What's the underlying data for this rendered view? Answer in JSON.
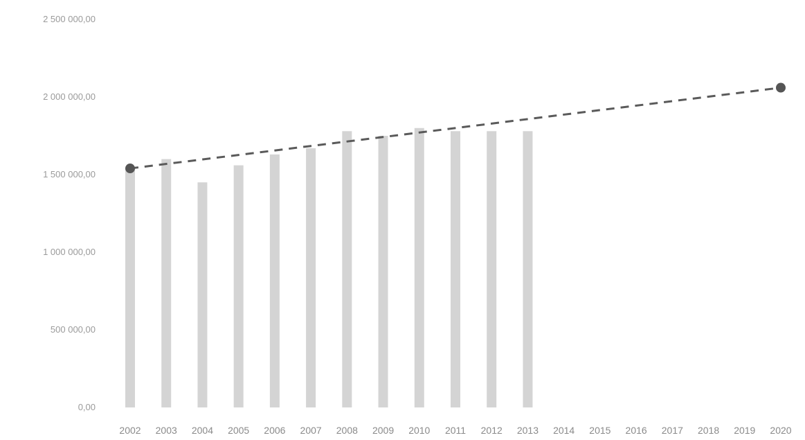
{
  "chart_data": {
    "type": "bar",
    "title": "",
    "xlabel": "",
    "ylabel": "",
    "categories": [
      "2002",
      "2003",
      "2004",
      "2005",
      "2006",
      "2007",
      "2008",
      "2009",
      "2010",
      "2011",
      "2012",
      "2013",
      "2014",
      "2015",
      "2016",
      "2017",
      "2018",
      "2019",
      "2020"
    ],
    "yticks": [
      "0,00",
      "500 000,00",
      "1 000 000,00",
      "1 500 000,00",
      "2 000 000,00",
      "2 500 000,00"
    ],
    "ylim": [
      0,
      2500000
    ],
    "grid": false,
    "legend": "none",
    "series": [
      {
        "type": "bar",
        "values": [
          1540000,
          1600000,
          1450000,
          1560000,
          1630000,
          1670000,
          1780000,
          1750000,
          1800000,
          1780000,
          1780000,
          1780000,
          null,
          null,
          null,
          null,
          null,
          null,
          null
        ]
      },
      {
        "type": "trendline",
        "from": {
          "x": "2002",
          "y": 1540000
        },
        "to": {
          "x": "2020",
          "y": 2060000
        }
      }
    ],
    "colors": {
      "bar": "#d4d4d4",
      "trend": "#5a5a5a",
      "marker": "#555555"
    }
  }
}
